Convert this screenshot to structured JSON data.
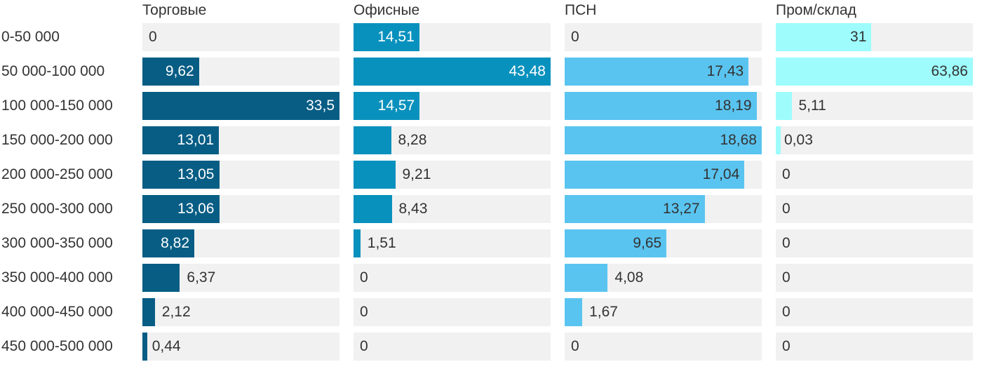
{
  "chart_data": {
    "type": "bar",
    "orientation": "horizontal",
    "categories": [
      "0-50 000",
      "50 000-100 000",
      "100 000-150 000",
      "150 000-200 000",
      "200 000-250 000",
      "250 000-300 000",
      "300 000-350 000",
      "350 000-400 000",
      "400 000-450 000",
      "450 000-500 000"
    ],
    "series": [
      {
        "name": "Торговые",
        "color": "#075d84",
        "label_color_inside": "#ffffff",
        "values": [
          0,
          9.62,
          33.5,
          13.01,
          13.05,
          13.06,
          8.82,
          6.37,
          2.12,
          0.44
        ],
        "display": [
          "0",
          "9,62",
          "33,5",
          "13,01",
          "13,05",
          "13,06",
          "8,82",
          "6,37",
          "2,12",
          "0,44"
        ]
      },
      {
        "name": "Офисные",
        "color": "#0991bd",
        "label_color_inside": "#ffffff",
        "values": [
          14.51,
          43.48,
          14.57,
          8.28,
          9.21,
          8.43,
          1.51,
          0,
          0,
          0
        ],
        "display": [
          "14,51",
          "43,48",
          "14,57",
          "8,28",
          "9,21",
          "8,43",
          "1,51",
          "0",
          "0",
          "0"
        ]
      },
      {
        "name": "ПСН",
        "color": "#5ac4f0",
        "label_color_inside": "#333333",
        "values": [
          0,
          17.43,
          18.19,
          18.68,
          17.04,
          13.27,
          9.65,
          4.08,
          1.67,
          0
        ],
        "display": [
          "0",
          "17,43",
          "18,19",
          "18,68",
          "17,04",
          "13,27",
          "9,65",
          "4,08",
          "1,67",
          "0"
        ]
      },
      {
        "name": "Пром/склад",
        "color": "#9efcfc",
        "label_color_inside": "#333333",
        "values": [
          31,
          63.86,
          5.11,
          0.03,
          0,
          0,
          0,
          0,
          0,
          0
        ],
        "display": [
          "31",
          "63,86",
          "5,11",
          "0,03",
          "0",
          "0",
          "0",
          "0",
          "0",
          "0"
        ]
      }
    ],
    "layout": {
      "scaling": "each column scaled independently; column max value fills full track width",
      "track_color": "#f1f1f1",
      "text_color": "#333333",
      "value_labels": "inside bar right-aligned when bar is wide, otherwise to the right of bar",
      "grid": false,
      "legend": false
    }
  }
}
